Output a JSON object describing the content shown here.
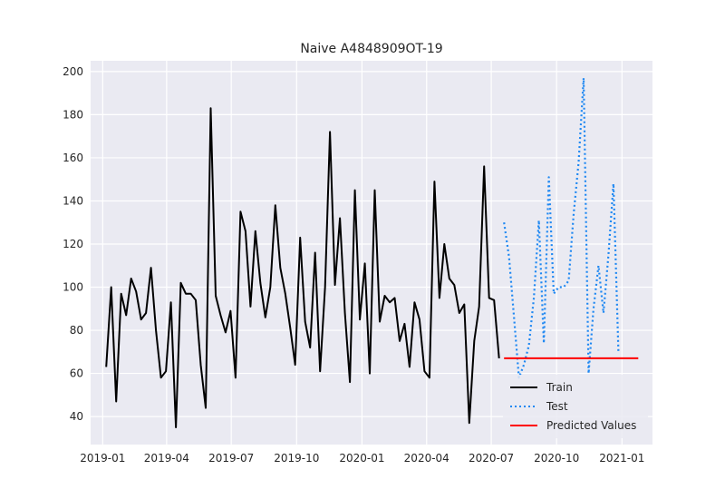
{
  "chart_data": {
    "type": "line",
    "title": "Naive A4848909OT-19",
    "xlabel": "",
    "ylabel": "",
    "xlim": [
      "2018-12-15",
      "2021-02-13"
    ],
    "ylim": [
      27,
      205
    ],
    "x_ticks": [
      {
        "date": "2019-01-01",
        "label": "2019-01"
      },
      {
        "date": "2019-04-01",
        "label": "2019-04"
      },
      {
        "date": "2019-07-01",
        "label": "2019-07"
      },
      {
        "date": "2019-10-01",
        "label": "2019-10"
      },
      {
        "date": "2020-01-01",
        "label": "2020-01"
      },
      {
        "date": "2020-04-01",
        "label": "2020-04"
      },
      {
        "date": "2020-07-01",
        "label": "2020-07"
      },
      {
        "date": "2020-10-01",
        "label": "2020-10"
      },
      {
        "date": "2021-01-01",
        "label": "2021-01"
      }
    ],
    "y_ticks": [
      40,
      60,
      80,
      100,
      120,
      140,
      160,
      180,
      200
    ],
    "grid": true,
    "legend": "bottom-right",
    "series": [
      {
        "name": "Train",
        "color": "#000000",
        "style": "solid",
        "x": [
          "2019-01-06",
          "2019-01-13",
          "2019-01-20",
          "2019-01-27",
          "2019-02-03",
          "2019-02-10",
          "2019-02-17",
          "2019-02-24",
          "2019-03-03",
          "2019-03-10",
          "2019-03-17",
          "2019-03-24",
          "2019-03-31",
          "2019-04-07",
          "2019-04-14",
          "2019-04-21",
          "2019-04-28",
          "2019-05-05",
          "2019-05-12",
          "2019-05-19",
          "2019-05-26",
          "2019-06-02",
          "2019-06-09",
          "2019-06-16",
          "2019-06-23",
          "2019-06-30",
          "2019-07-07",
          "2019-07-14",
          "2019-07-21",
          "2019-07-28",
          "2019-08-04",
          "2019-08-11",
          "2019-08-18",
          "2019-08-25",
          "2019-09-01",
          "2019-09-08",
          "2019-09-15",
          "2019-09-22",
          "2019-09-29",
          "2019-10-06",
          "2019-10-13",
          "2019-10-20",
          "2019-10-27",
          "2019-11-03",
          "2019-11-10",
          "2019-11-17",
          "2019-11-24",
          "2019-12-01",
          "2019-12-08",
          "2019-12-15",
          "2019-12-22",
          "2019-12-29",
          "2020-01-05",
          "2020-01-12",
          "2020-01-19",
          "2020-01-26",
          "2020-02-02",
          "2020-02-09",
          "2020-02-16",
          "2020-02-23",
          "2020-03-01",
          "2020-03-08",
          "2020-03-15",
          "2020-03-22",
          "2020-03-29",
          "2020-04-05",
          "2020-04-12",
          "2020-04-19",
          "2020-04-26",
          "2020-05-03",
          "2020-05-10",
          "2020-05-17",
          "2020-05-24",
          "2020-05-31",
          "2020-06-07",
          "2020-06-14",
          "2020-06-21",
          "2020-06-28",
          "2020-07-05",
          "2020-07-12"
        ],
        "values": [
          63,
          100,
          47,
          97,
          87,
          104,
          98,
          85,
          88,
          109,
          80,
          58,
          61,
          93,
          35,
          102,
          97,
          97,
          94,
          64,
          44,
          183,
          96,
          87,
          79,
          89,
          58,
          135,
          126,
          91,
          126,
          102,
          86,
          100,
          138,
          109,
          97,
          81,
          64,
          123,
          84,
          72,
          116,
          61,
          100,
          172,
          101,
          132,
          88,
          56,
          145,
          85,
          111,
          60,
          145,
          84,
          96,
          93,
          95,
          75,
          83,
          63,
          93,
          85,
          61,
          58,
          149,
          95,
          120,
          104,
          101,
          88,
          92,
          37,
          75,
          91,
          156,
          95,
          94,
          67
        ]
      },
      {
        "name": "Test",
        "color": "#1f88f2",
        "style": "dotted",
        "x": [
          "2020-07-19",
          "2020-07-26",
          "2020-08-02",
          "2020-08-09",
          "2020-08-16",
          "2020-08-23",
          "2020-08-30",
          "2020-09-06",
          "2020-09-13",
          "2020-09-20",
          "2020-09-27",
          "2020-10-04",
          "2020-10-11",
          "2020-10-18",
          "2020-10-25",
          "2020-11-01",
          "2020-11-08",
          "2020-11-15",
          "2020-11-22",
          "2020-11-29",
          "2020-12-06",
          "2020-12-13",
          "2020-12-20",
          "2020-12-27"
        ],
        "values": [
          130,
          114,
          86,
          58,
          64,
          73,
          95,
          131,
          74,
          151,
          97,
          100,
          100,
          103,
          134,
          158,
          197,
          60,
          90,
          110,
          88,
          115,
          148,
          70
        ]
      },
      {
        "name": "Predicted Values",
        "color": "#ff0000",
        "style": "solid",
        "x": [
          "2020-07-19",
          "2021-01-24"
        ],
        "values": [
          67,
          67
        ]
      }
    ]
  }
}
